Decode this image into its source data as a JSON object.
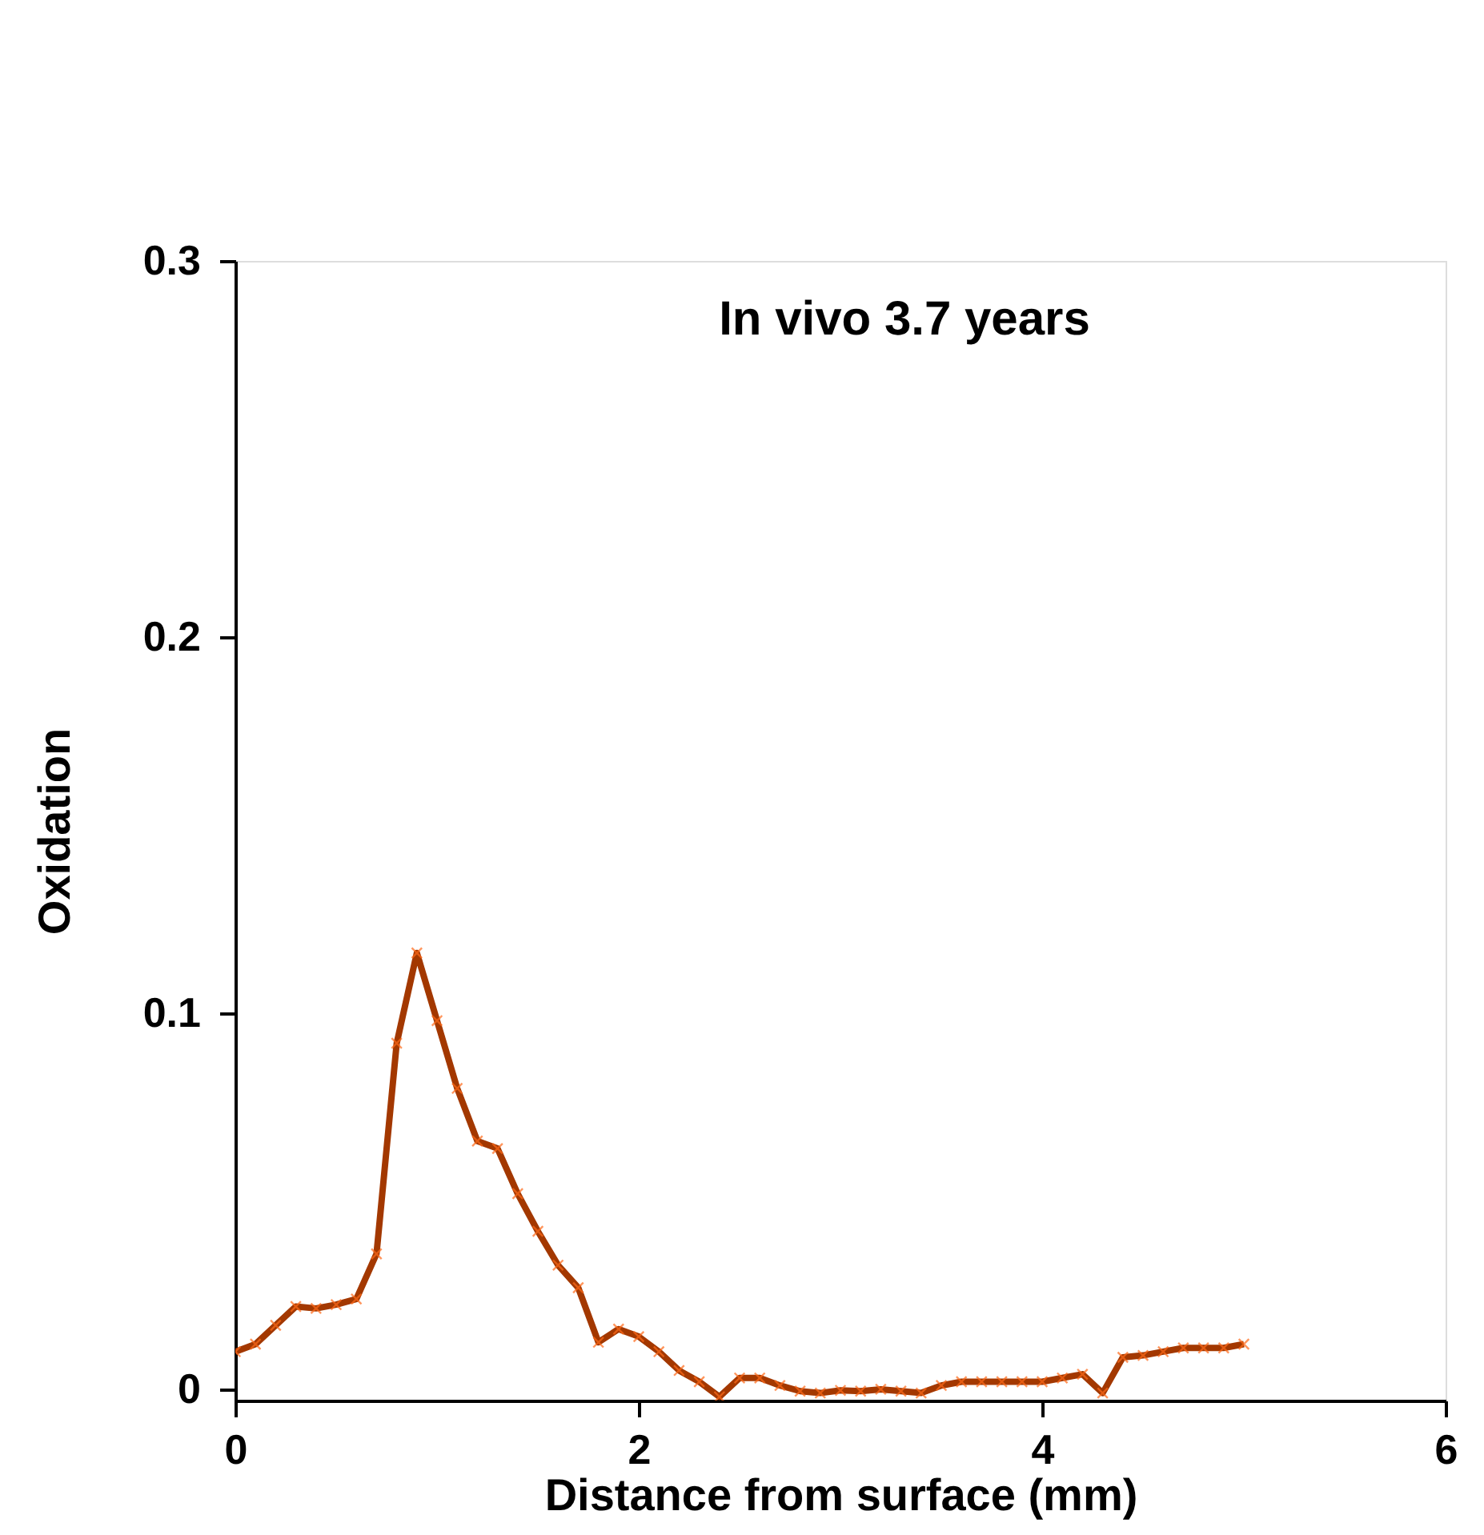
{
  "chart_data": {
    "type": "line",
    "title": "In vivo 3.7 years",
    "xlabel": "Distance from surface (mm)",
    "ylabel": "Oxidation",
    "x": [
      0,
      0.1,
      0.2,
      0.3,
      0.4,
      0.5,
      0.6,
      0.7,
      0.8,
      0.9,
      1.0,
      1.1,
      1.2,
      1.3,
      1.4,
      1.5,
      1.6,
      1.7,
      1.8,
      1.9,
      2.0,
      2.1,
      2.2,
      2.3,
      2.4,
      2.5,
      2.6,
      2.7,
      2.8,
      2.9,
      3.0,
      3.1,
      3.2,
      3.3,
      3.4,
      3.5,
      3.6,
      3.7,
      3.8,
      3.9,
      4.0,
      4.1,
      4.2,
      4.3,
      4.4,
      4.5,
      4.6,
      4.7,
      4.8,
      4.9,
      5.0
    ],
    "series": [
      {
        "color": "#a33800",
        "values": [
          0.01,
          0.012,
          0.017,
          0.022,
          0.0215,
          0.0225,
          0.024,
          0.036,
          0.092,
          0.116,
          0.098,
          0.08,
          0.066,
          0.064,
          0.052,
          0.042,
          0.033,
          0.027,
          0.0125,
          0.016,
          0.014,
          0.01,
          0.005,
          0.002,
          -0.002,
          0.003,
          0.003,
          0.001,
          -0.0005,
          -0.001,
          -0.0003,
          -0.0005,
          0,
          -0.0005,
          -0.001,
          0.001,
          0.002,
          0.002,
          0.002,
          0.002,
          0.002,
          0.003,
          0.004,
          -0.001,
          0.0085,
          0.009,
          0.01,
          0.011,
          0.011,
          0.011,
          0.012
        ]
      }
    ],
    "xlim": [
      0,
      6
    ],
    "xticks": [
      0,
      2,
      4,
      6
    ],
    "ylim": [
      -0.003,
      0.3
    ],
    "yticks": [
      0,
      0.1,
      0.2,
      0.3
    ],
    "grid": false,
    "marker": "cross",
    "line_style": "solid"
  }
}
